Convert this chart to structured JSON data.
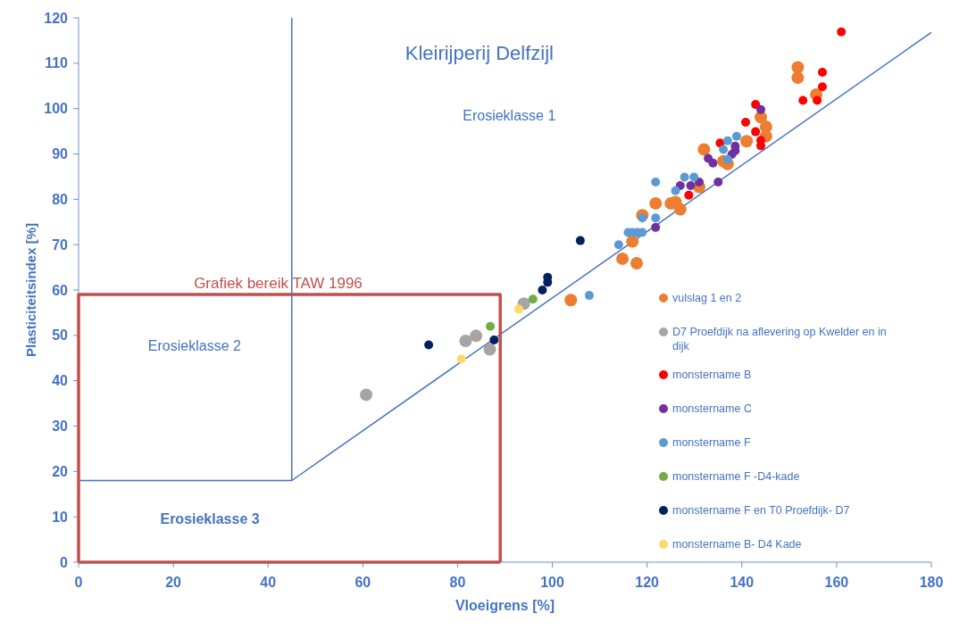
{
  "chart_data": {
    "type": "scatter",
    "title": "Kleirijperij Delfzijl",
    "xlabel": "Vloeigrens [%]",
    "ylabel": "Plasticiteitsindex [%]",
    "xlim": [
      0,
      180
    ],
    "ylim": [
      0,
      120
    ],
    "xticks": [
      0,
      20,
      40,
      60,
      80,
      100,
      120,
      140,
      160,
      180
    ],
    "yticks": [
      0,
      10,
      20,
      30,
      40,
      50,
      60,
      70,
      80,
      90,
      100,
      110,
      120
    ],
    "grid": false,
    "legend": "right",
    "marker": "circle",
    "annotations": [
      "Grafiek bereik TAW 1996",
      "Erosieklasse 1",
      "Erosieklasse 2",
      "Erosieklasse 3"
    ],
    "series": [
      {
        "type": "line",
        "marker": "none",
        "color": "#4472c4",
        "x": [
          0,
          45,
          180
        ],
        "values": [
          18,
          18,
          116.8
        ]
      },
      {
        "type": "line",
        "marker": "none",
        "color": "#4472c4",
        "x": [
          45,
          45
        ],
        "values": [
          18,
          120
        ]
      },
      {
        "type": "line",
        "marker": "none",
        "color": "#c0504d",
        "x": [
          0,
          0,
          89,
          89
        ],
        "values": [
          0,
          59,
          59,
          0
        ]
      },
      {
        "type": "line",
        "marker": "none",
        "color": "#c0504d",
        "x": [
          0,
          89
        ],
        "values": [
          0,
          0
        ]
      },
      {
        "name": "vulslag 1 en 2",
        "color": "#ed7d31",
        "x": [
          151.8,
          151.8,
          155.7,
          144,
          145.1,
          145.1,
          141,
          132,
          136.1,
          137,
          131,
          121.8,
          125,
          126,
          127,
          119,
          116.9,
          114.8,
          117.8,
          103.9
        ],
        "values": [
          109.1,
          106.8,
          103.1,
          98.1,
          96,
          93.9,
          92.8,
          91,
          88.4,
          87.8,
          82.7,
          79.1,
          79.1,
          79.4,
          77.8,
          76.5,
          70.7,
          66.9,
          65.9,
          57.8
        ]
      },
      {
        "name": "D7 Proefdijk na aflevering op Kwelder en in dijk",
        "color": "#a5a5a5",
        "x": [
          60.7,
          81.7,
          83.9,
          86.8,
          94
        ],
        "values": [
          36.9,
          48.8,
          49.9,
          46.9,
          57
        ]
      },
      {
        "name": "monstername B",
        "color": "#ff0000",
        "x": [
          161,
          157,
          157,
          152.9,
          155.9,
          142.9,
          140.8,
          142.9,
          144,
          144,
          135.4,
          128.8
        ],
        "values": [
          116.9,
          108,
          104.8,
          101.8,
          101.8,
          100.9,
          97,
          94.9,
          93,
          91.8,
          92.4,
          80.9
        ]
      },
      {
        "name": "monstername C",
        "color": "#7030a0",
        "x": [
          144,
          132.9,
          133.9,
          138.6,
          138.6,
          137.9,
          135,
          127,
          129.2,
          131,
          121.8
        ],
        "values": [
          99.8,
          89,
          88,
          91.7,
          90.7,
          89.9,
          83.8,
          83,
          83,
          83.8,
          73.8
        ]
      },
      {
        "name": "monstername F",
        "color": "#5b9bd5",
        "x": [
          138.9,
          137,
          136.1,
          137,
          121.8,
          127.9,
          129.9,
          126,
          119,
          121.8,
          116,
          117,
          118,
          119,
          114,
          107.8
        ],
        "values": [
          93.9,
          92.9,
          91,
          88.8,
          83.8,
          84.9,
          84.9,
          81.9,
          75.9,
          75.9,
          72.7,
          72.7,
          72.7,
          72.7,
          70,
          58.8
        ]
      },
      {
        "name": "monstername F -D4-kade",
        "color": "#70ad47",
        "x": [
          86.9,
          95.9
        ],
        "values": [
          52,
          58
        ]
      },
      {
        "name": "monstername F en T0 Proefdijk- D7",
        "color": "#002060",
        "x": [
          73.9,
          87.7,
          97.9,
          99,
          99,
          105.9
        ],
        "values": [
          47.9,
          49,
          60,
          62.8,
          61.7,
          70.9
        ]
      },
      {
        "name": "monstername B- D4 Kade",
        "color": "#ffd966",
        "x": [
          80.8,
          92.9
        ],
        "values": [
          44.8,
          55.8
        ]
      }
    ]
  }
}
